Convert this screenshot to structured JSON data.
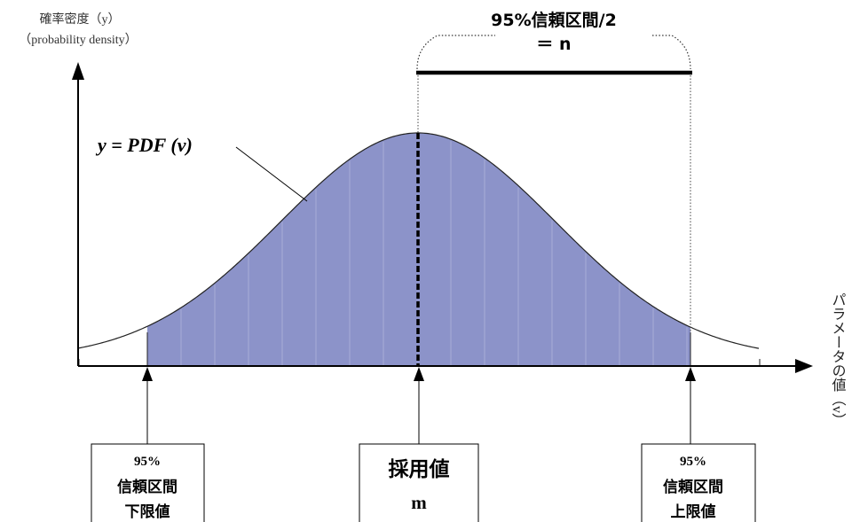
{
  "y_axis": {
    "title_ja": "確率密度（y）",
    "title_en": "（probability density）"
  },
  "x_axis": {
    "title": "パラメータの値（v）"
  },
  "curve": {
    "label": "y = PDF (v)",
    "fill_color": "#8c93c9",
    "stroke_color": "#222222"
  },
  "interval": {
    "title": "95%信頼区間/2",
    "equals": "＝ n"
  },
  "boxes": {
    "lower": {
      "line1": "95%",
      "line2": "信頼区間",
      "line3": "下限値"
    },
    "center": {
      "line1": "採用値",
      "line2": "m"
    },
    "upper": {
      "line1": "95%",
      "line2": "信頼区間",
      "line3": "上限値"
    }
  }
}
